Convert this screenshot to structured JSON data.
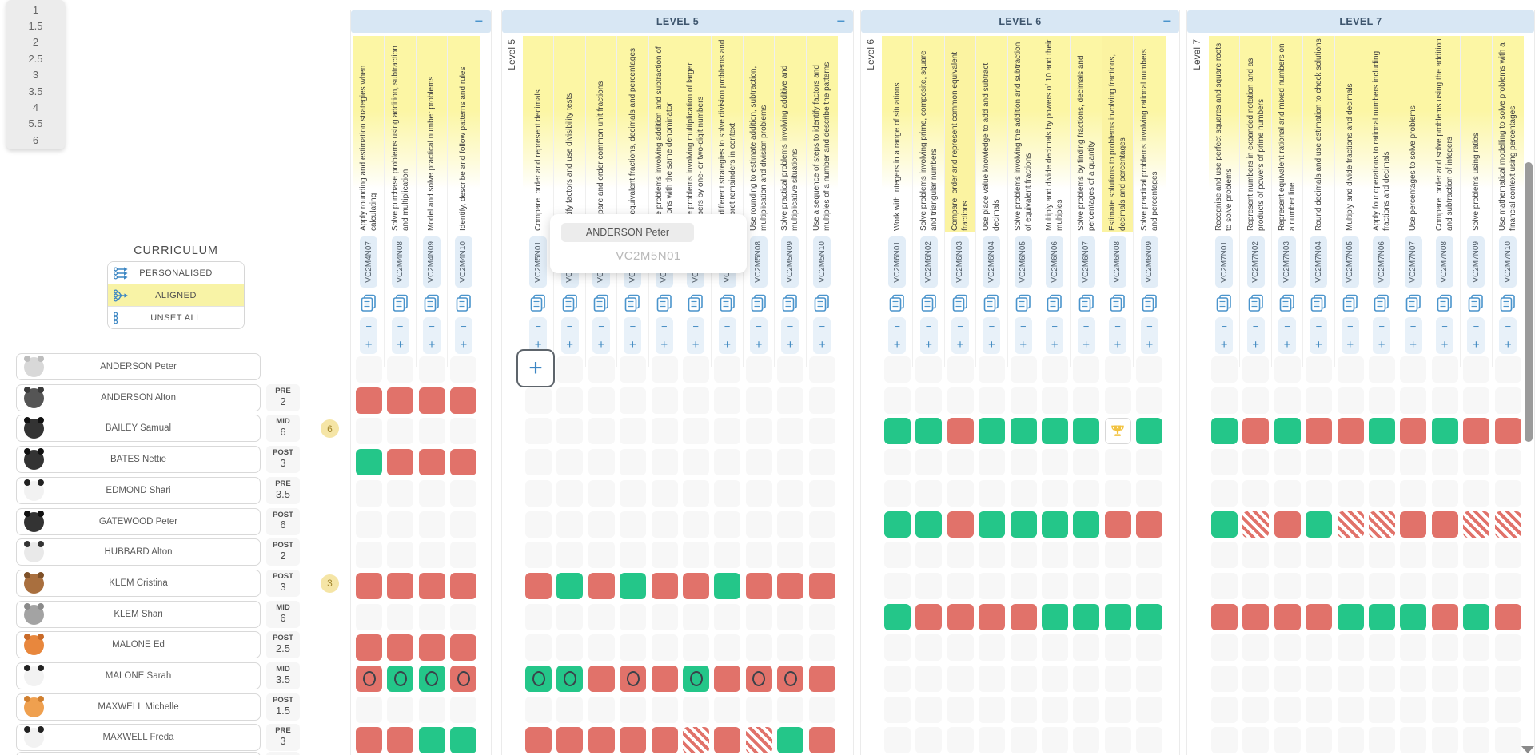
{
  "level_dropdown": {
    "options": [
      "1",
      "1.5",
      "2",
      "2.5",
      "3",
      "3.5",
      "4",
      "5.5",
      "6"
    ]
  },
  "curriculum": {
    "title": "CURRICULUM",
    "options": [
      {
        "label": "PERSONALISED",
        "icon": "personalised-icon",
        "highlighted": false
      },
      {
        "label": "ALIGNED",
        "icon": "aligned-icon",
        "highlighted": true
      },
      {
        "label": "UNSET ALL",
        "icon": "unset-all-icon",
        "highlighted": false
      }
    ]
  },
  "students": [
    {
      "name": "ANDERSON Peter",
      "avatar": "rabbit",
      "assessment": null,
      "badge": null
    },
    {
      "name": "ANDERSON Alton",
      "avatar": "wolf",
      "assessment": {
        "label": "PRE",
        "value": "2"
      },
      "badge": null
    },
    {
      "name": "BAILEY Samual",
      "avatar": "penguin",
      "assessment": {
        "label": "MID",
        "value": "6"
      },
      "badge": "6"
    },
    {
      "name": "BATES Nettie",
      "avatar": "penguin",
      "assessment": {
        "label": "POST",
        "value": "3"
      },
      "badge": null
    },
    {
      "name": "EDMOND Shari",
      "avatar": "panda",
      "assessment": {
        "label": "PRE",
        "value": "3.5"
      },
      "badge": null
    },
    {
      "name": "GATEWOOD Peter",
      "avatar": "penguin",
      "assessment": {
        "label": "POST",
        "value": "6"
      },
      "badge": null
    },
    {
      "name": "HUBBARD Alton",
      "avatar": "zebra",
      "assessment": {
        "label": "POST",
        "value": "2"
      },
      "badge": null
    },
    {
      "name": "KLEM Cristina",
      "avatar": "monkey",
      "assessment": {
        "label": "POST",
        "value": "3"
      },
      "badge": "3"
    },
    {
      "name": "KLEM Shari",
      "avatar": "koala",
      "assessment": {
        "label": "MID",
        "value": "6"
      },
      "badge": null
    },
    {
      "name": "MALONE Ed",
      "avatar": "fox",
      "assessment": {
        "label": "POST",
        "value": "2.5"
      },
      "badge": null
    },
    {
      "name": "MALONE Sarah",
      "avatar": "panda",
      "assessment": {
        "label": "MID",
        "value": "3.5"
      },
      "badge": null
    },
    {
      "name": "MAXWELL Michelle",
      "avatar": "tiger",
      "assessment": {
        "label": "POST",
        "value": "1.5"
      },
      "badge": null
    },
    {
      "name": "MAXWELL Freda",
      "avatar": "panda",
      "assessment": {
        "label": "PRE",
        "value": "3"
      },
      "badge": null
    }
  ],
  "groups": [
    {
      "title": "",
      "level_label": "",
      "collapse_minus": true,
      "columns": [
        {
          "code": "VC2M4N07",
          "desc": "Apply rounding and estimation strategies when calculating",
          "highlight": false
        },
        {
          "code": "VC2M4N08",
          "desc": "Solve purchase problems using addition, subtraction and multiplication",
          "highlight": false
        },
        {
          "code": "VC2M4N09",
          "desc": "Model and solve practical number problems",
          "highlight": false
        },
        {
          "code": "VC2M4N10",
          "desc": "Identify, describe and follow patterns and rules",
          "highlight": false
        }
      ],
      "cells": [
        [
          "",
          "",
          "",
          ""
        ],
        [
          "R",
          "R",
          "R",
          "R"
        ],
        [
          "",
          "",
          "",
          ""
        ],
        [
          "G",
          "R",
          "R",
          "R"
        ],
        [
          "",
          "",
          "",
          ""
        ],
        [
          "",
          "",
          "",
          ""
        ],
        [
          "",
          "",
          "",
          ""
        ],
        [
          "R",
          "R",
          "R",
          "R"
        ],
        [
          "",
          "",
          "",
          ""
        ],
        [
          "R",
          "R",
          "R",
          "R"
        ],
        [
          "RC",
          "GC",
          "GC",
          "RC"
        ],
        [
          "",
          "",
          "",
          ""
        ],
        [
          "R",
          "R",
          "G",
          "G"
        ]
      ]
    },
    {
      "title": "LEVEL 5",
      "level_label": "Level 5",
      "collapse_minus": true,
      "columns": [
        {
          "code": "VC2M5N01",
          "desc": "Compare, order and represent decimals",
          "highlight": false
        },
        {
          "code": "VC2M5N02",
          "desc": "Identify factors and use divisibility tests",
          "highlight": false
        },
        {
          "code": "VC2M5N03",
          "desc": "Compare and order common unit fractions",
          "highlight": false
        },
        {
          "code": "VC2M5N04",
          "desc": "Use equivalent fractions, decimals and percentages",
          "highlight": false
        },
        {
          "code": "VC2M5N05",
          "desc": "Solve problems involving addition and subtraction of fractions with the same denominator",
          "highlight": false
        },
        {
          "code": "VC2M5N06",
          "desc": "Solve problems involving multiplication of larger numbers by one- or two-digit numbers",
          "highlight": false
        },
        {
          "code": "VC2M5N07",
          "desc": "Use different strategies to solve division problems and interpret remainders in context",
          "highlight": false
        },
        {
          "code": "VC2M5N08",
          "desc": "Use rounding to estimate addition, subtraction, multiplication and division problems",
          "highlight": false
        },
        {
          "code": "VC2M5N09",
          "desc": "Solve practical problems involving additive and multiplicative situations",
          "highlight": false
        },
        {
          "code": "VC2M5N10",
          "desc": "Use a sequence of steps to identify factors and multiples of a number and describe the patterns",
          "highlight": false
        }
      ],
      "cells": [
        [
          "",
          "",
          "",
          "",
          "",
          "",
          "",
          "",
          "",
          ""
        ],
        [
          "",
          "",
          "",
          "",
          "",
          "",
          "",
          "",
          "",
          ""
        ],
        [
          "",
          "",
          "",
          "",
          "",
          "",
          "",
          "",
          "",
          ""
        ],
        [
          "",
          "",
          "",
          "",
          "",
          "",
          "",
          "",
          "",
          ""
        ],
        [
          "",
          "",
          "",
          "",
          "",
          "",
          "",
          "",
          "",
          ""
        ],
        [
          "",
          "",
          "",
          "",
          "",
          "",
          "",
          "",
          "",
          ""
        ],
        [
          "",
          "",
          "",
          "",
          "",
          "",
          "",
          "",
          "",
          ""
        ],
        [
          "R",
          "G",
          "R",
          "G",
          "R",
          "R",
          "G",
          "R",
          "R",
          "R"
        ],
        [
          "",
          "",
          "",
          "",
          "",
          "",
          "",
          "",
          "",
          ""
        ],
        [
          "",
          "",
          "",
          "",
          "",
          "",
          "",
          "",
          "",
          ""
        ],
        [
          "GC",
          "GC",
          "R",
          "RC",
          "R",
          "GC",
          "R",
          "RC",
          "RC",
          "R"
        ],
        [
          "",
          "",
          "",
          "",
          "",
          "",
          "",
          "",
          "",
          ""
        ],
        [
          "R",
          "R",
          "R",
          "R",
          "R",
          "H",
          "R",
          "H",
          "G",
          "R"
        ]
      ]
    },
    {
      "title": "LEVEL 6",
      "level_label": "Level 6",
      "collapse_minus": true,
      "columns": [
        {
          "code": "VC2M6N01",
          "desc": "Work with integers in a range of situations",
          "highlight": false
        },
        {
          "code": "VC2M6N02",
          "desc": "Solve problems involving prime, composite, square and triangular numbers",
          "highlight": false
        },
        {
          "code": "VC2M6N03",
          "desc": "Compare, order and represent common equivalent fractions",
          "highlight": true
        },
        {
          "code": "VC2M6N04",
          "desc": "Use place value knowledge to add and subtract decimals",
          "highlight": false
        },
        {
          "code": "VC2M6N05",
          "desc": "Solve problems involving the addition and subtraction of equivalent fractions",
          "highlight": false
        },
        {
          "code": "VC2M6N06",
          "desc": "Multiply and divide decimals by powers of 10 and their multiples",
          "highlight": false
        },
        {
          "code": "VC2M6N07",
          "desc": "Solve problems by finding fractions, decimals and percentages of a quantity",
          "highlight": false
        },
        {
          "code": "VC2M6N08",
          "desc": "Estimate solutions to problems involving fractions, decimals and percentages",
          "highlight": true
        },
        {
          "code": "VC2M6N09",
          "desc": "Solve practical problems involving rational numbers and percentages",
          "highlight": false
        }
      ],
      "cells": [
        [
          "",
          "",
          "",
          "",
          "",
          "",
          "",
          "",
          ""
        ],
        [
          "",
          "",
          "",
          "",
          "",
          "",
          "",
          "",
          ""
        ],
        [
          "G",
          "G",
          "R",
          "G",
          "G",
          "G",
          "G",
          "T",
          "G"
        ],
        [
          "",
          "",
          "",
          "",
          "",
          "",
          "",
          "",
          ""
        ],
        [
          "",
          "",
          "",
          "",
          "",
          "",
          "",
          "",
          ""
        ],
        [
          "G",
          "G",
          "R",
          "G",
          "G",
          "G",
          "G",
          "R",
          "R"
        ],
        [
          "",
          "",
          "",
          "",
          "",
          "",
          "",
          "",
          ""
        ],
        [
          "",
          "",
          "",
          "",
          "",
          "",
          "",
          "",
          ""
        ],
        [
          "G",
          "R",
          "R",
          "R",
          "R",
          "G",
          "G",
          "G",
          "G"
        ],
        [
          "",
          "",
          "",
          "",
          "",
          "",
          "",
          "",
          ""
        ],
        [
          "",
          "",
          "",
          "",
          "",
          "",
          "",
          "",
          ""
        ],
        [
          "",
          "",
          "",
          "",
          "",
          "",
          "",
          "",
          ""
        ],
        [
          "",
          "",
          "",
          "",
          "",
          "",
          "",
          "",
          ""
        ]
      ]
    },
    {
      "title": "LEVEL 7",
      "level_label": "Level 7",
      "collapse_minus": false,
      "columns": [
        {
          "code": "VC2M7N01",
          "desc": "Recognise and use perfect squares and square roots to solve problems",
          "highlight": false
        },
        {
          "code": "VC2M7N02",
          "desc": "Represent numbers in expanded notation and as products of powers of prime numbers",
          "highlight": false
        },
        {
          "code": "VC2M7N03",
          "desc": "Represent equivalent rational and mixed numbers on a number line",
          "highlight": false
        },
        {
          "code": "VC2M7N04",
          "desc": "Round decimals and use estimation to check solutions",
          "highlight": false
        },
        {
          "code": "VC2M7N05",
          "desc": "Multiply and divide fractions and decimals",
          "highlight": false
        },
        {
          "code": "VC2M7N06",
          "desc": "Apply four operations to rational numbers including fractions and decimals",
          "highlight": false
        },
        {
          "code": "VC2M7N07",
          "desc": "Use percentages to solve problems",
          "highlight": false
        },
        {
          "code": "VC2M7N08",
          "desc": "Compare, order and solve problems using the addition and subtraction of integers",
          "highlight": false
        },
        {
          "code": "VC2M7N09",
          "desc": "Solve problems using ratios",
          "highlight": false
        },
        {
          "code": "VC2M7N10",
          "desc": "Use mathematical modelling to solve problems with a financial context using percentages",
          "highlight": false
        }
      ],
      "cells": [
        [
          "",
          "",
          "",
          "",
          "",
          "",
          "",
          "",
          "",
          ""
        ],
        [
          "",
          "",
          "",
          "",
          "",
          "",
          "",
          "",
          "",
          ""
        ],
        [
          "G",
          "R",
          "G",
          "R",
          "R",
          "G",
          "R",
          "G",
          "R",
          "R"
        ],
        [
          "",
          "",
          "",
          "",
          "",
          "",
          "",
          "",
          "",
          ""
        ],
        [
          "",
          "",
          "",
          "",
          "",
          "",
          "",
          "",
          "",
          ""
        ],
        [
          "G",
          "H",
          "R",
          "G",
          "H",
          "H",
          "R",
          "R",
          "H",
          "H"
        ],
        [
          "",
          "",
          "",
          "",
          "",
          "",
          "",
          "",
          "",
          ""
        ],
        [
          "",
          "",
          "",
          "",
          "",
          "",
          "",
          "",
          "",
          ""
        ],
        [
          "R",
          "R",
          "R",
          "R",
          "G",
          "G",
          "G",
          "R",
          "G",
          "R"
        ],
        [
          "",
          "",
          "",
          "",
          "",
          "",
          "",
          "",
          "",
          ""
        ],
        [
          "",
          "",
          "",
          "",
          "",
          "",
          "",
          "",
          "",
          ""
        ],
        [
          "",
          "",
          "",
          "",
          "",
          "",
          "",
          "",
          "",
          ""
        ],
        [
          "",
          "",
          "",
          "",
          "",
          "",
          "",
          "",
          "",
          ""
        ]
      ]
    }
  ],
  "tooltip": {
    "student": "ANDERSON Peter",
    "code": "VC2M5N01"
  },
  "hover_plus_label": "+",
  "colors": {
    "achieved_green": "#24c689",
    "not_achieved_red": "#e1726a",
    "empty_cell": "#f7f7f7",
    "column_highlight_yellow": "#fbf3a1",
    "header_bar_blue": "#d8e7f4",
    "accent_blue": "#3c87c0",
    "aligned_option_yellow": "#f8f3a6",
    "badge_yellow": "#f5e5a6"
  }
}
